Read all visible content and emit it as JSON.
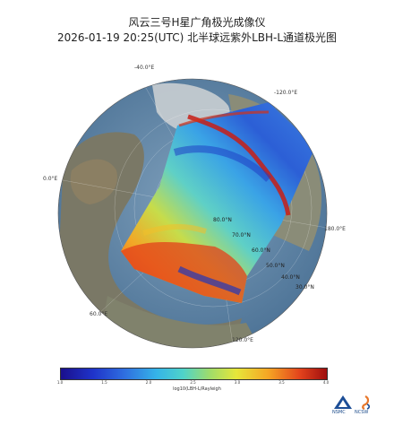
{
  "title": {
    "line1": "风云三号H星广角极光成像仪",
    "line2": "2026-01-19 20:25(UTC) 北半球远紫外LBH-L通道极光图"
  },
  "map_labels": {
    "lon_n40": "-40.0°E",
    "lon_n120": "-120.0°E",
    "lon_0": "0.0°E",
    "lon_180": "180.0°E",
    "lon_60": "60.0°E",
    "lon_120": "120.0°E",
    "lat_80": "80.0°N",
    "lat_70": "70.0°N",
    "lat_60": "60.0°N",
    "lat_50": "50.0°N",
    "lat_40": "40.0°N",
    "lat_30": "30.0°N"
  },
  "colorbar": {
    "ticks": [
      "1.0",
      "1.5",
      "2.0",
      "2.5",
      "3.0",
      "3.5",
      "4.0"
    ],
    "label": "log10(LBH-L/Rayleigh"
  },
  "logos": {
    "nsmc": "NSMC",
    "ncsw": "NCSW"
  },
  "colors": {
    "ocean": "#5f86a8",
    "land": "#7b7d6d",
    "aurora_high": "#d42a1c",
    "aurora_low": "#2a52cf"
  }
}
